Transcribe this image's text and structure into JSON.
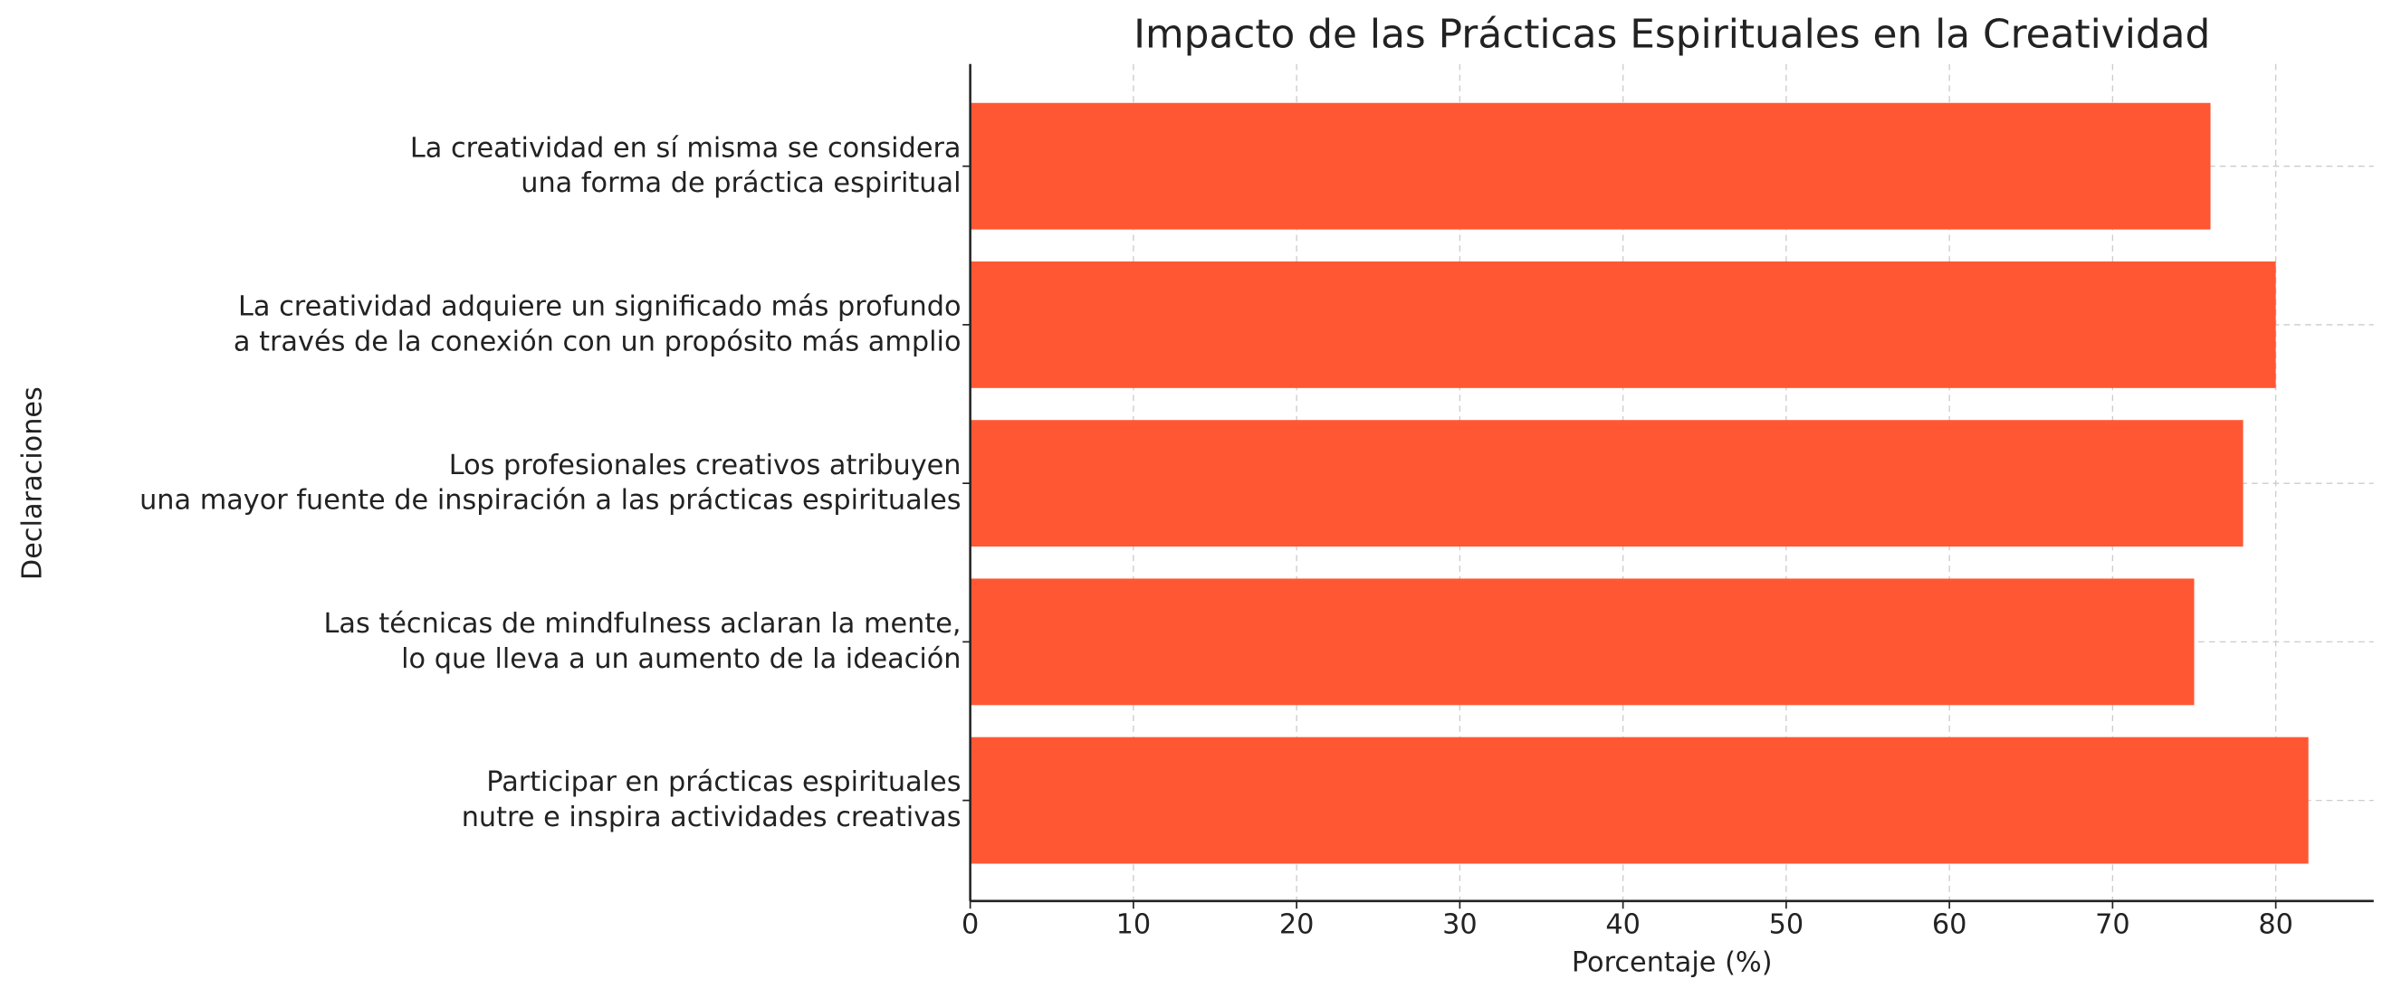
{
  "chart_data": {
    "type": "barh",
    "title": "Impacto de las Prácticas Espirituales en la Creatividad",
    "xlabel": "Porcentaje (%)",
    "ylabel": "Declaraciones",
    "categories": [
      [
        "Participar en prácticas espirituales",
        "nutre e inspira actividades creativas"
      ],
      [
        "Las técnicas de mindfulness aclaran la mente,",
        "lo que lleva a un aumento de la ideación"
      ],
      [
        "Los profesionales creativos atribuyen",
        "una mayor fuente de inspiración a las prácticas espirituales"
      ],
      [
        "La creatividad adquiere un significado más profundo",
        "a través de la conexión con un propósito más amplio"
      ],
      [
        "La creatividad en sí misma se considera",
        "una forma de práctica espiritual"
      ]
    ],
    "values": [
      82,
      75,
      78,
      80,
      76
    ],
    "color": "#ff5733",
    "xlim": [
      0,
      86
    ],
    "xticks": [
      0,
      10,
      20,
      30,
      40,
      50,
      60,
      70,
      80
    ],
    "grid": true
  }
}
